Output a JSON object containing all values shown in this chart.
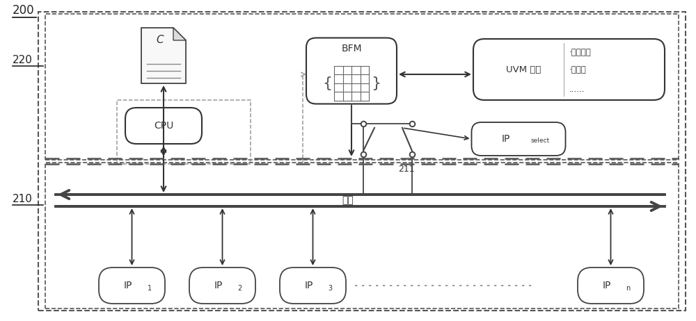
{
  "bg_color": "#ffffff",
  "label_200": "200",
  "label_220": "220",
  "label_210": "210",
  "label_bus": "总线",
  "label_cpu": "CPU",
  "label_bfm": "BFM",
  "label_uvm_left": "UVM 用例",
  "label_uvm_r1": "·约束随机",
  "label_uvm_r2": "·覆盖率",
  "label_uvm_r3": "......",
  "label_211": "211",
  "label_c": "C"
}
